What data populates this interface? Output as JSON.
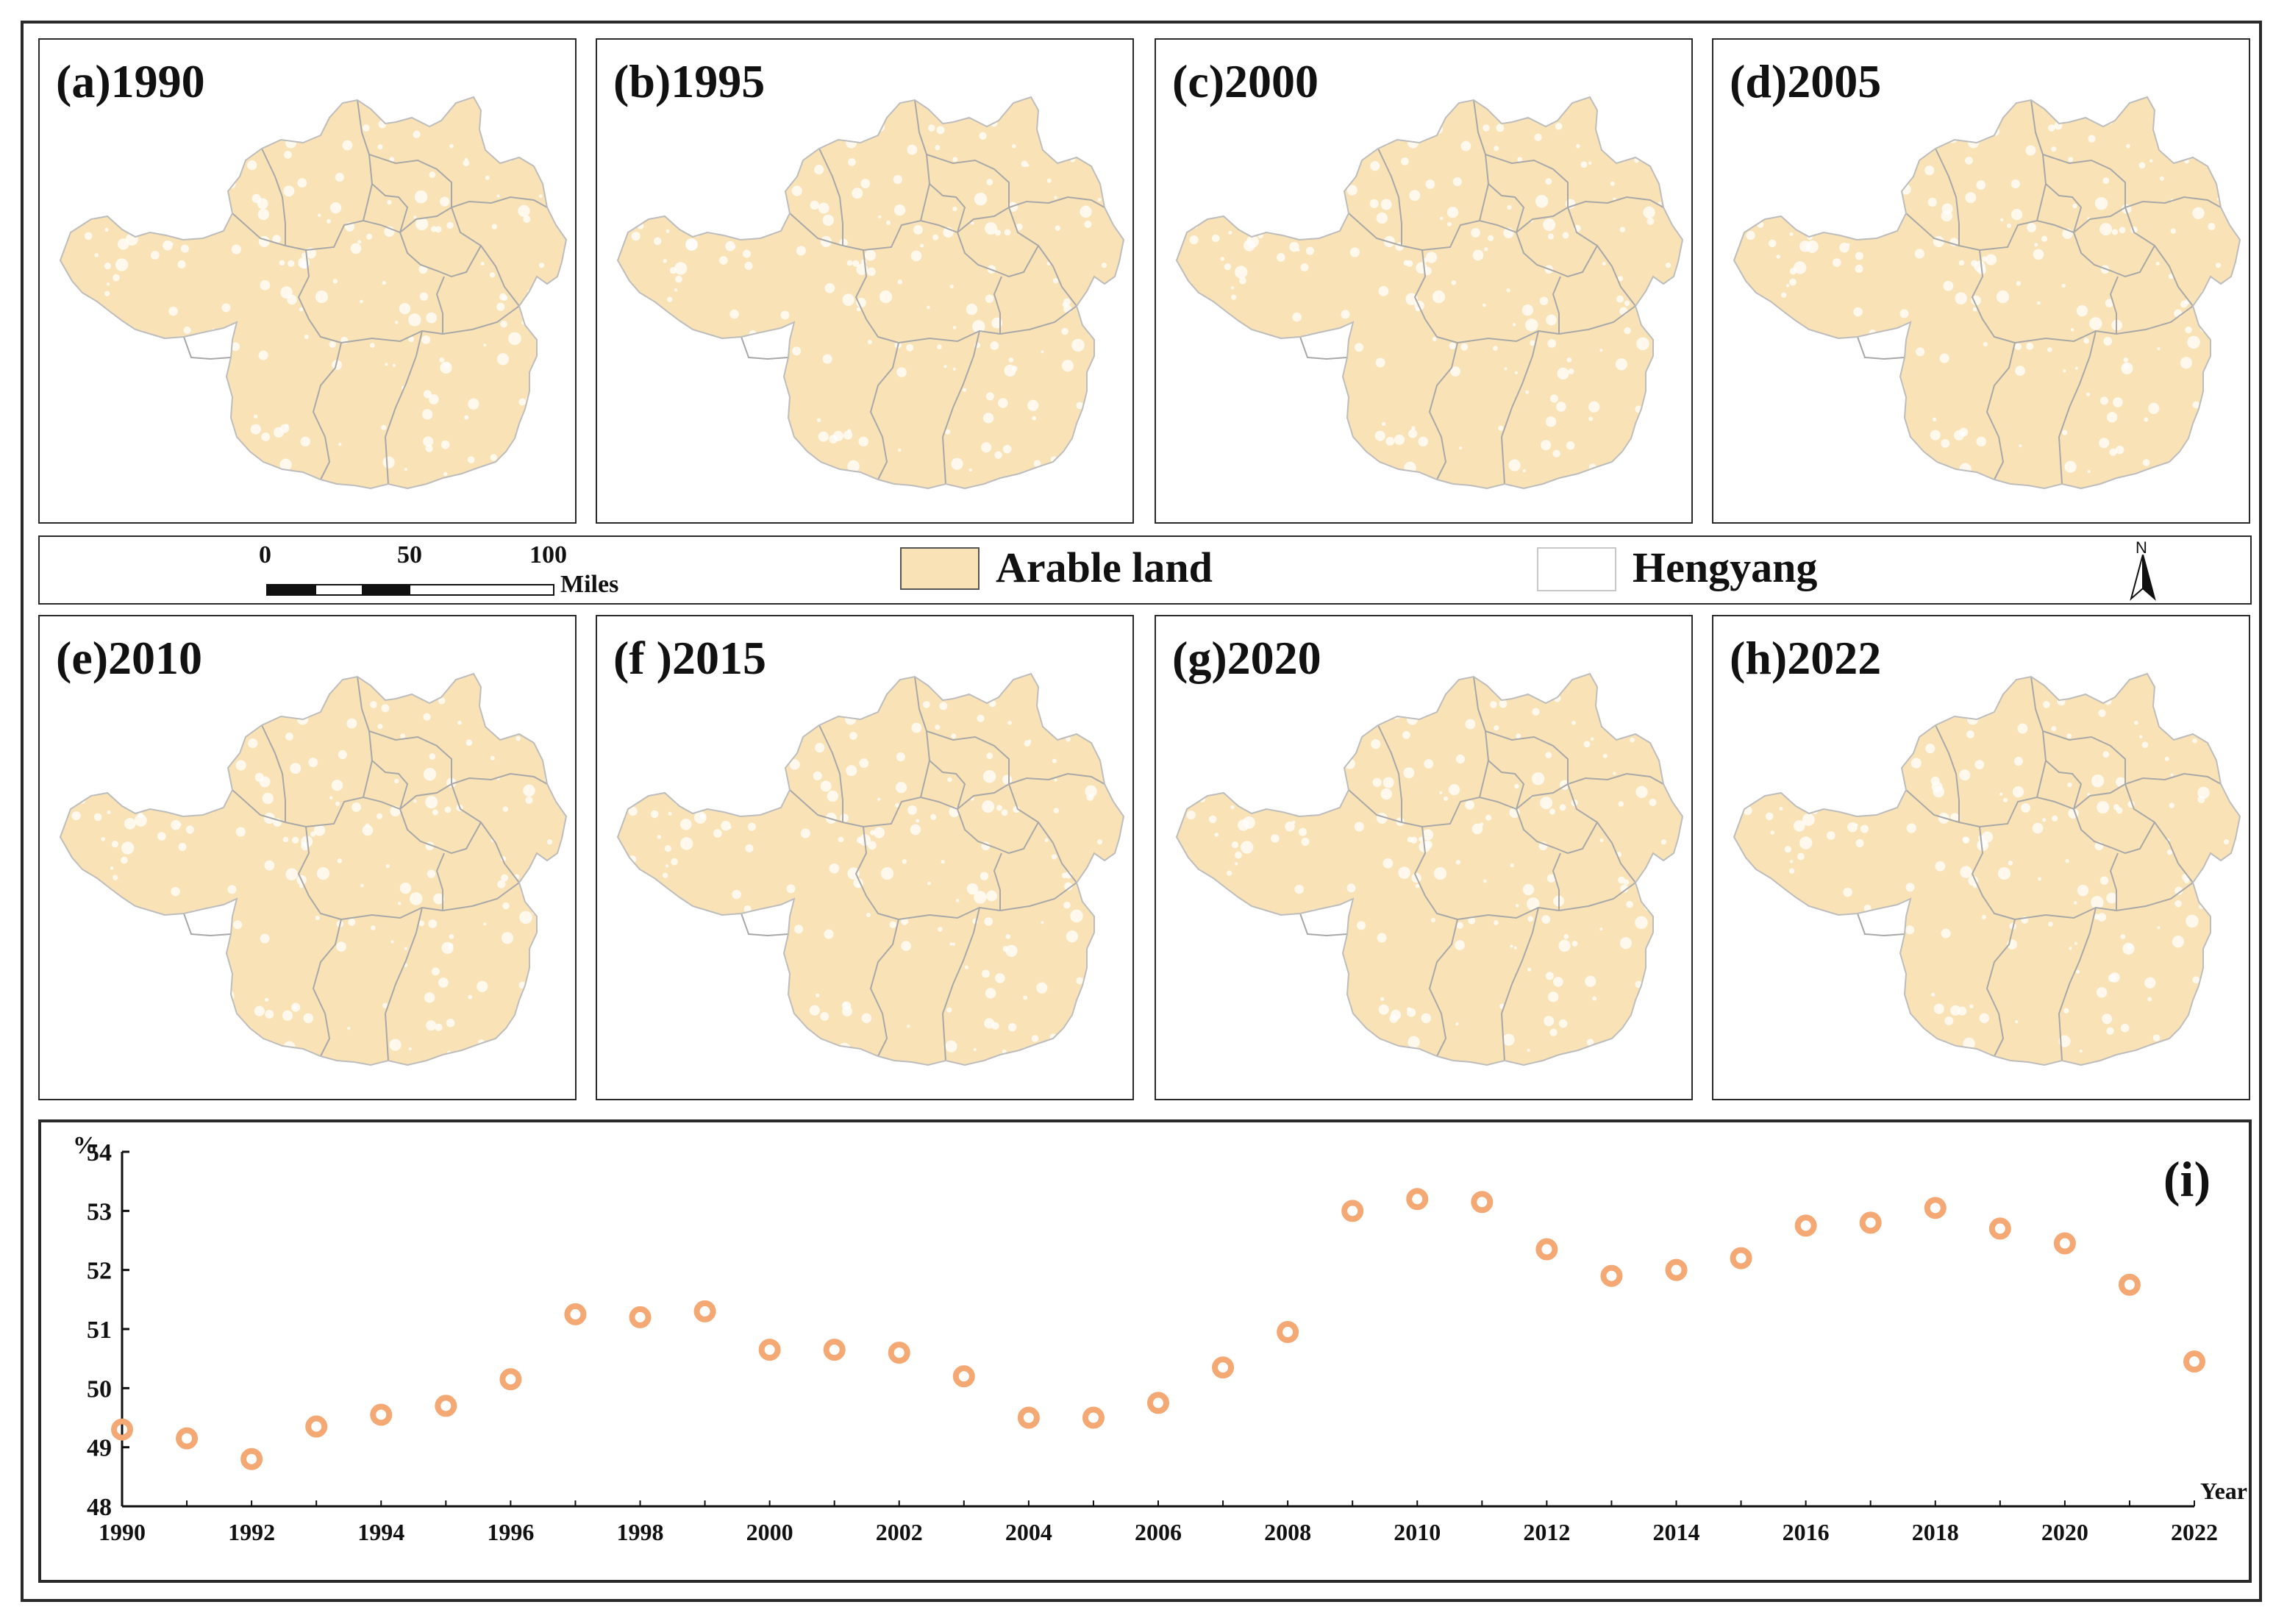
{
  "legend": {
    "scale_ticks": [
      "0",
      "50",
      "100"
    ],
    "scale_unit": "Miles",
    "items": [
      {
        "label": "Arable land",
        "color": "#f9e3b6"
      },
      {
        "label": "Hengyang",
        "color": "#ffffff"
      }
    ],
    "north_label": "N"
  },
  "maps": [
    {
      "label": "(a)1990"
    },
    {
      "label": "(b)1995"
    },
    {
      "label": "(c)2000"
    },
    {
      "label": "(d)2005"
    },
    {
      "label": "(e)2010"
    },
    {
      "label": "(f )2015"
    },
    {
      "label": "(g)2020"
    },
    {
      "label": "(h)2022"
    }
  ],
  "colors": {
    "arable": "#f9e3b6",
    "boundary": "#a8a8a8",
    "marker": "#f4a874"
  },
  "chart_data": {
    "type": "scatter",
    "panel_label": "(i)",
    "ylabel": "%",
    "xlabel": "Year",
    "ylim": [
      48,
      54
    ],
    "xlim": [
      1990,
      2022
    ],
    "y_ticks": [
      "48",
      "49",
      "50",
      "51",
      "52",
      "53",
      "54"
    ],
    "x_ticks": [
      "1990",
      "1992",
      "1994",
      "1996",
      "1998",
      "2000",
      "2002",
      "2004",
      "2006",
      "2008",
      "2010",
      "2012",
      "2014",
      "2016",
      "2018",
      "2020",
      "2022"
    ],
    "x": [
      1990,
      1991,
      1992,
      1993,
      1994,
      1995,
      1996,
      1997,
      1998,
      1999,
      2000,
      2001,
      2002,
      2003,
      2004,
      2005,
      2006,
      2007,
      2008,
      2009,
      2010,
      2011,
      2012,
      2013,
      2014,
      2015,
      2016,
      2017,
      2018,
      2019,
      2020,
      2021,
      2022
    ],
    "y": [
      49.3,
      49.15,
      48.8,
      49.35,
      49.55,
      49.7,
      50.15,
      51.25,
      51.2,
      51.3,
      50.65,
      50.65,
      50.6,
      50.2,
      49.5,
      49.5,
      49.75,
      50.35,
      50.95,
      53.0,
      53.2,
      53.15,
      52.35,
      51.9,
      52.0,
      52.2,
      52.75,
      52.8,
      53.05,
      52.7,
      52.45,
      51.75,
      50.45
    ]
  }
}
